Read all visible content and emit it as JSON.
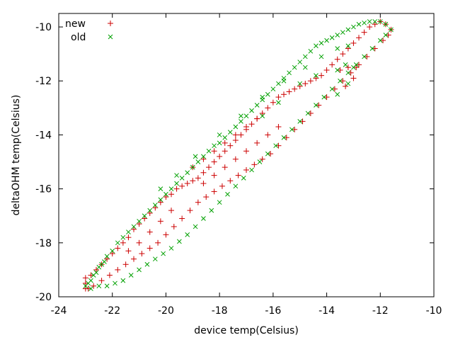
{
  "chart_data": {
    "type": "scatter",
    "title": "",
    "xlabel": "device temp(Celsius)",
    "ylabel": "deltaOHM temp(Celsius)",
    "xlim": [
      -24,
      -10
    ],
    "ylim": [
      -20,
      -9.5
    ],
    "xticks": [
      -24,
      -22,
      -20,
      -18,
      -16,
      -14,
      -12,
      -10
    ],
    "yticks": [
      -20,
      -18,
      -16,
      -14,
      -12,
      -10
    ],
    "grid": false,
    "legend_position": "top-left",
    "series": [
      {
        "name": "new",
        "marker": "+",
        "color": "#cc0000",
        "points": [
          [
            -23.0,
            -19.7
          ],
          [
            -23.0,
            -19.5
          ],
          [
            -23.0,
            -19.3
          ],
          [
            -22.8,
            -19.2
          ],
          [
            -22.6,
            -19.0
          ],
          [
            -22.4,
            -18.8
          ],
          [
            -22.2,
            -18.6
          ],
          [
            -22.0,
            -18.4
          ],
          [
            -21.8,
            -18.2
          ],
          [
            -21.6,
            -18.0
          ],
          [
            -21.4,
            -17.8
          ],
          [
            -21.2,
            -17.5
          ],
          [
            -21.0,
            -17.3
          ],
          [
            -20.8,
            -17.1
          ],
          [
            -20.6,
            -16.9
          ],
          [
            -20.4,
            -16.7
          ],
          [
            -20.2,
            -16.5
          ],
          [
            -20.0,
            -16.3
          ],
          [
            -19.8,
            -16.2
          ],
          [
            -19.6,
            -16.0
          ],
          [
            -19.4,
            -15.9
          ],
          [
            -19.2,
            -15.8
          ],
          [
            -19.0,
            -15.7
          ],
          [
            -18.8,
            -15.6
          ],
          [
            -18.6,
            -15.4
          ],
          [
            -18.4,
            -15.2
          ],
          [
            -18.2,
            -15.0
          ],
          [
            -18.0,
            -14.8
          ],
          [
            -17.8,
            -14.6
          ],
          [
            -17.6,
            -14.4
          ],
          [
            -17.4,
            -14.2
          ],
          [
            -17.2,
            -14.0
          ],
          [
            -17.0,
            -13.8
          ],
          [
            -16.8,
            -13.6
          ],
          [
            -16.6,
            -13.4
          ],
          [
            -16.4,
            -13.2
          ],
          [
            -16.2,
            -13.0
          ],
          [
            -16.0,
            -12.8
          ],
          [
            -15.8,
            -12.6
          ],
          [
            -15.6,
            -12.5
          ],
          [
            -15.4,
            -12.4
          ],
          [
            -15.2,
            -12.3
          ],
          [
            -15.0,
            -12.2
          ],
          [
            -14.8,
            -12.1
          ],
          [
            -14.6,
            -12.0
          ],
          [
            -14.4,
            -11.9
          ],
          [
            -14.2,
            -11.8
          ],
          [
            -14.0,
            -11.6
          ],
          [
            -13.8,
            -11.4
          ],
          [
            -13.6,
            -11.2
          ],
          [
            -13.4,
            -11.0
          ],
          [
            -13.2,
            -10.8
          ],
          [
            -13.0,
            -10.6
          ],
          [
            -12.8,
            -10.4
          ],
          [
            -12.6,
            -10.2
          ],
          [
            -12.4,
            -10.0
          ],
          [
            -12.2,
            -9.9
          ],
          [
            -12.0,
            -9.8
          ],
          [
            -11.8,
            -9.9
          ],
          [
            -11.6,
            -10.1
          ],
          [
            -11.7,
            -10.3
          ],
          [
            -11.9,
            -10.5
          ],
          [
            -12.2,
            -10.8
          ],
          [
            -12.5,
            -11.1
          ],
          [
            -12.8,
            -11.4
          ],
          [
            -13.1,
            -11.7
          ],
          [
            -13.4,
            -12.0
          ],
          [
            -13.7,
            -12.3
          ],
          [
            -14.0,
            -12.6
          ],
          [
            -14.3,
            -12.9
          ],
          [
            -14.6,
            -13.2
          ],
          [
            -14.9,
            -13.5
          ],
          [
            -15.2,
            -13.8
          ],
          [
            -15.5,
            -14.1
          ],
          [
            -15.8,
            -14.4
          ],
          [
            -16.1,
            -14.7
          ],
          [
            -16.4,
            -14.9
          ],
          [
            -16.7,
            -15.1
          ],
          [
            -17.0,
            -15.3
          ],
          [
            -17.3,
            -15.5
          ],
          [
            -17.6,
            -15.7
          ],
          [
            -17.9,
            -15.9
          ],
          [
            -18.2,
            -16.1
          ],
          [
            -18.5,
            -16.3
          ],
          [
            -18.8,
            -16.5
          ],
          [
            -19.1,
            -16.8
          ],
          [
            -19.4,
            -17.1
          ],
          [
            -19.7,
            -17.4
          ],
          [
            -20.0,
            -17.7
          ],
          [
            -20.3,
            -18.0
          ],
          [
            -20.6,
            -18.2
          ],
          [
            -20.9,
            -18.4
          ],
          [
            -21.2,
            -18.6
          ],
          [
            -21.5,
            -18.8
          ],
          [
            -21.8,
            -19.0
          ],
          [
            -22.1,
            -19.2
          ],
          [
            -22.4,
            -19.4
          ],
          [
            -22.7,
            -19.6
          ],
          [
            -22.9,
            -19.7
          ],
          [
            -19.0,
            -15.2
          ],
          [
            -18.6,
            -14.9
          ],
          [
            -18.2,
            -14.6
          ],
          [
            -17.8,
            -14.3
          ],
          [
            -17.4,
            -14.0
          ],
          [
            -17.0,
            -13.7
          ],
          [
            -16.6,
            -13.4
          ],
          [
            -18.6,
            -15.8
          ],
          [
            -18.2,
            -15.5
          ],
          [
            -17.8,
            -15.2
          ],
          [
            -17.4,
            -14.9
          ],
          [
            -17.0,
            -14.6
          ],
          [
            -16.6,
            -14.3
          ],
          [
            -16.2,
            -14.0
          ],
          [
            -15.8,
            -13.7
          ],
          [
            -21.0,
            -18.0
          ],
          [
            -20.6,
            -17.6
          ],
          [
            -20.2,
            -17.2
          ],
          [
            -19.8,
            -16.8
          ],
          [
            -21.4,
            -18.3
          ],
          [
            -13.5,
            -11.6
          ],
          [
            -13.2,
            -11.5
          ],
          [
            -12.9,
            -11.5
          ],
          [
            -13.0,
            -11.9
          ],
          [
            -13.3,
            -12.2
          ]
        ]
      },
      {
        "name": "old",
        "marker": "x",
        "color": "#00a000",
        "points": [
          [
            -23.0,
            -19.6
          ],
          [
            -22.8,
            -19.4
          ],
          [
            -22.6,
            -19.1
          ],
          [
            -22.4,
            -18.8
          ],
          [
            -22.2,
            -18.5
          ],
          [
            -22.0,
            -18.3
          ],
          [
            -21.8,
            -18.0
          ],
          [
            -21.6,
            -17.8
          ],
          [
            -21.4,
            -17.6
          ],
          [
            -21.2,
            -17.4
          ],
          [
            -21.0,
            -17.2
          ],
          [
            -20.8,
            -17.0
          ],
          [
            -20.6,
            -16.8
          ],
          [
            -20.4,
            -16.6
          ],
          [
            -20.2,
            -16.4
          ],
          [
            -20.0,
            -16.2
          ],
          [
            -19.8,
            -16.0
          ],
          [
            -19.6,
            -15.8
          ],
          [
            -19.4,
            -15.6
          ],
          [
            -19.2,
            -15.4
          ],
          [
            -19.0,
            -15.2
          ],
          [
            -18.8,
            -15.0
          ],
          [
            -18.6,
            -14.8
          ],
          [
            -18.4,
            -14.6
          ],
          [
            -18.2,
            -14.4
          ],
          [
            -18.0,
            -14.3
          ],
          [
            -17.8,
            -14.1
          ],
          [
            -17.6,
            -13.9
          ],
          [
            -17.4,
            -13.7
          ],
          [
            -17.2,
            -13.5
          ],
          [
            -17.0,
            -13.3
          ],
          [
            -16.8,
            -13.1
          ],
          [
            -16.6,
            -12.9
          ],
          [
            -16.4,
            -12.7
          ],
          [
            -16.2,
            -12.5
          ],
          [
            -16.0,
            -12.3
          ],
          [
            -15.8,
            -12.1
          ],
          [
            -15.6,
            -11.9
          ],
          [
            -15.4,
            -11.7
          ],
          [
            -15.2,
            -11.5
          ],
          [
            -15.0,
            -11.3
          ],
          [
            -14.8,
            -11.1
          ],
          [
            -14.6,
            -10.9
          ],
          [
            -14.4,
            -10.7
          ],
          [
            -14.2,
            -10.6
          ],
          [
            -14.0,
            -10.5
          ],
          [
            -13.8,
            -10.4
          ],
          [
            -13.6,
            -10.3
          ],
          [
            -13.4,
            -10.2
          ],
          [
            -13.2,
            -10.1
          ],
          [
            -13.0,
            -10.0
          ],
          [
            -12.8,
            -9.9
          ],
          [
            -12.6,
            -9.85
          ],
          [
            -12.4,
            -9.8
          ],
          [
            -12.2,
            -9.8
          ],
          [
            -12.0,
            -9.8
          ],
          [
            -11.8,
            -9.9
          ],
          [
            -11.6,
            -10.1
          ],
          [
            -11.8,
            -10.3
          ],
          [
            -12.0,
            -10.5
          ],
          [
            -12.3,
            -10.8
          ],
          [
            -12.6,
            -11.1
          ],
          [
            -12.9,
            -11.4
          ],
          [
            -13.2,
            -11.7
          ],
          [
            -13.5,
            -12.0
          ],
          [
            -13.8,
            -12.3
          ],
          [
            -14.1,
            -12.6
          ],
          [
            -14.4,
            -12.9
          ],
          [
            -14.7,
            -13.2
          ],
          [
            -15.0,
            -13.5
          ],
          [
            -15.3,
            -13.8
          ],
          [
            -15.6,
            -14.1
          ],
          [
            -15.9,
            -14.4
          ],
          [
            -16.2,
            -14.7
          ],
          [
            -16.5,
            -15.0
          ],
          [
            -16.8,
            -15.3
          ],
          [
            -17.1,
            -15.6
          ],
          [
            -17.4,
            -15.9
          ],
          [
            -17.7,
            -16.2
          ],
          [
            -18.0,
            -16.5
          ],
          [
            -18.3,
            -16.8
          ],
          [
            -18.6,
            -17.1
          ],
          [
            -18.9,
            -17.4
          ],
          [
            -19.2,
            -17.7
          ],
          [
            -19.5,
            -17.95
          ],
          [
            -19.8,
            -18.2
          ],
          [
            -20.1,
            -18.4
          ],
          [
            -20.4,
            -18.6
          ],
          [
            -20.7,
            -18.8
          ],
          [
            -21.0,
            -19.0
          ],
          [
            -21.3,
            -19.2
          ],
          [
            -21.6,
            -19.4
          ],
          [
            -21.9,
            -19.5
          ],
          [
            -22.2,
            -19.6
          ],
          [
            -22.5,
            -19.6
          ],
          [
            -22.8,
            -19.7
          ],
          [
            -22.9,
            -19.5
          ],
          [
            -22.7,
            -19.2
          ],
          [
            -22.5,
            -18.9
          ],
          [
            -22.3,
            -18.7
          ],
          [
            -20.2,
            -16.0
          ],
          [
            -19.6,
            -15.5
          ],
          [
            -18.9,
            -14.8
          ],
          [
            -18.0,
            -14.0
          ],
          [
            -17.2,
            -13.3
          ],
          [
            -16.4,
            -12.6
          ],
          [
            -15.6,
            -12.0
          ],
          [
            -14.8,
            -11.5
          ],
          [
            -14.2,
            -11.1
          ],
          [
            -13.6,
            -10.8
          ],
          [
            -13.2,
            -10.7
          ],
          [
            -15.0,
            -12.1
          ],
          [
            -15.8,
            -12.8
          ],
          [
            -16.4,
            -13.3
          ],
          [
            -14.4,
            -11.8
          ],
          [
            -13.6,
            -11.6
          ],
          [
            -13.0,
            -11.5
          ],
          [
            -13.3,
            -11.4
          ],
          [
            -13.6,
            -12.5
          ],
          [
            -13.2,
            -12.1
          ]
        ]
      }
    ]
  }
}
